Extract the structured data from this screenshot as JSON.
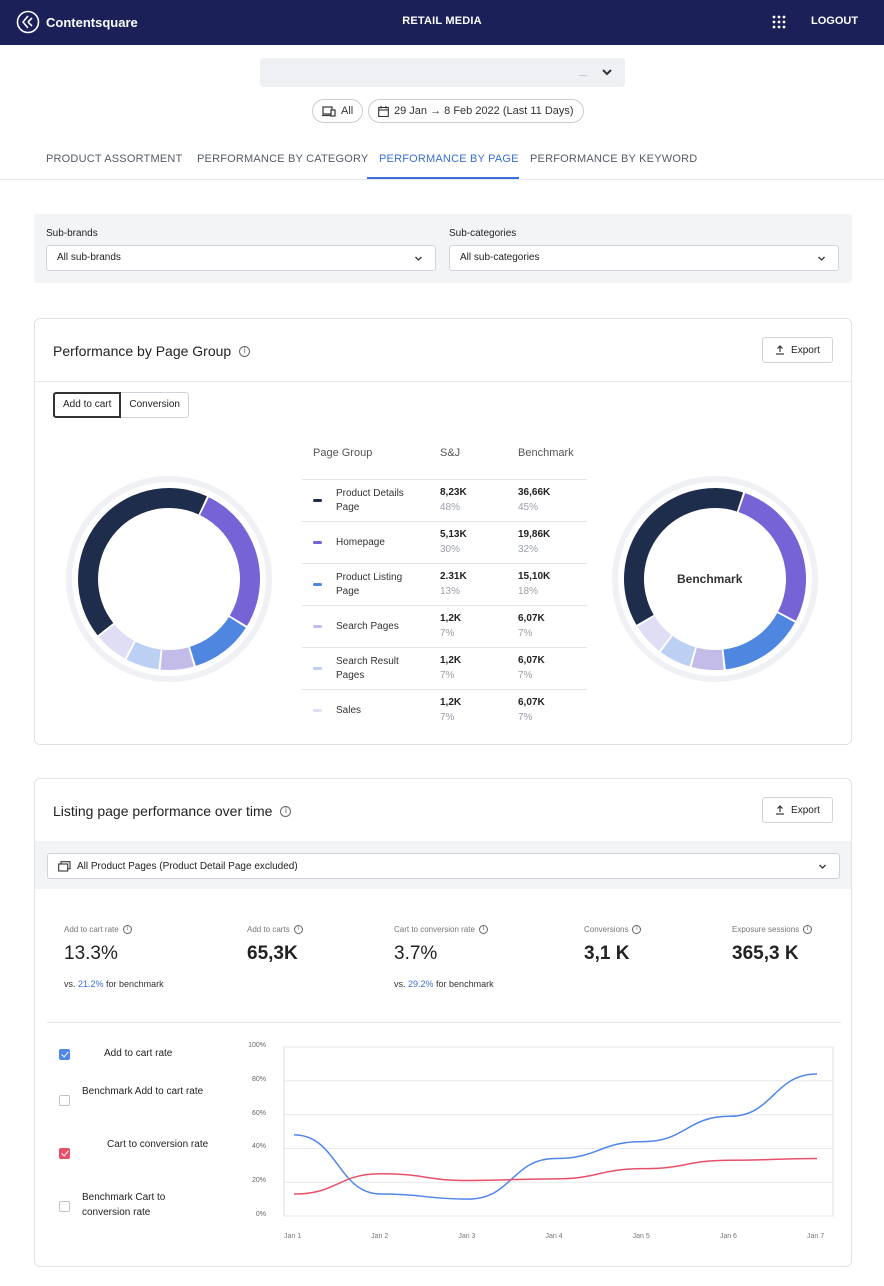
{
  "header": {
    "brand": "Contentsquare",
    "center_title": "RETAIL MEDIA",
    "logout": "LOGOUT"
  },
  "filters_top": {
    "device": "All",
    "date_range": "29 Jan → 8 Feb 2022 (Last 11 Days)"
  },
  "tabs": [
    {
      "label": "PRODUCT ASSORTMENT"
    },
    {
      "label": "PERFORMANCE BY CATEGORY"
    },
    {
      "label": "PERFORMANCE BY PAGE"
    },
    {
      "label": "PERFORMANCE BY KEYWORD"
    }
  ],
  "active_tab": "PERFORMANCE BY PAGE",
  "sub_filters": {
    "brands_label": "Sub-brands",
    "brands_value": "All sub-brands",
    "categories_label": "Sub-categories",
    "categories_value": "All sub-categories"
  },
  "page_group": {
    "title": "Performance by Page Group",
    "export": "Export",
    "toggle": [
      "Add to cart",
      "Conversion"
    ],
    "active_toggle": "Add to cart",
    "columns": [
      "Page Group",
      "S&J",
      "Benchmark"
    ],
    "benchmark_label": "Benchmark",
    "rows": [
      {
        "name": "Product Details Page",
        "color": "#1f2d4d",
        "sj": "8,23K",
        "sj_pct": "48%",
        "bm": "36,66K",
        "bm_pct": "45%"
      },
      {
        "name": "Homepage",
        "color": "#7663d6",
        "sj": "5,13K",
        "sj_pct": "30%",
        "bm": "19,86K",
        "bm_pct": "32%"
      },
      {
        "name": "Product Listing Page",
        "color": "#4f86e0",
        "sj": "2.31K",
        "sj_pct": "13%",
        "bm": "15,10K",
        "bm_pct": "18%"
      },
      {
        "name": "Search Pages",
        "color": "#c3bce9",
        "sj": "1,2K",
        "sj_pct": "7%",
        "bm": "6,07K",
        "bm_pct": "7%"
      },
      {
        "name": "Search Result Pages",
        "color": "#bcd0f4",
        "sj": "1,2K",
        "sj_pct": "7%",
        "bm": "6,07K",
        "bm_pct": "7%"
      },
      {
        "name": "Sales",
        "color": "#e0def5",
        "sj": "1,2K",
        "sj_pct": "7%",
        "bm": "6,07K",
        "bm_pct": "7%"
      }
    ]
  },
  "listing": {
    "title": "Listing page performance over time",
    "export": "Export",
    "dropdown": "All Product Pages (Product Detail Page excluded)",
    "kpis": [
      {
        "label": "Add to cart rate",
        "value": "13.3%",
        "sub_pre": "vs. ",
        "sub_hl": "21.2%",
        "sub_post": " for benchmark"
      },
      {
        "label": "Add to carts",
        "value": "65,3K"
      },
      {
        "label": "Cart to conversion rate",
        "value": "3.7%",
        "sub_pre": "vs. ",
        "sub_hl": "29.2%",
        "sub_post": " for benchmark"
      },
      {
        "label": "Conversions",
        "value": "3,1 K"
      },
      {
        "label": "Exposure sessions",
        "value": "365,3 K"
      }
    ],
    "series_toggles": [
      {
        "label": "Add to cart rate",
        "checked": true,
        "color": "#4f86e8"
      },
      {
        "label": "Benchmark Add to cart rate",
        "checked": false
      },
      {
        "label": "Cart to conversion rate",
        "checked": true,
        "color": "#e8506a"
      },
      {
        "label": "Benchmark Cart to conversion rate",
        "checked": false
      }
    ]
  },
  "chart_data": {
    "type": "line",
    "x": [
      "Jan 1",
      "Jan 2",
      "Jan 3",
      "Jan 4",
      "Jan 5",
      "Jan 6",
      "Jan 7"
    ],
    "y_ticks": [
      "100%",
      "80%",
      "60%",
      "40%",
      "20%",
      "0%"
    ],
    "ylim": [
      0,
      100
    ],
    "grid": true,
    "series": [
      {
        "name": "Add to cart rate",
        "color": "#4f86e8",
        "values": [
          48,
          13,
          10,
          34,
          44,
          59,
          84
        ]
      },
      {
        "name": "Cart to conversion rate",
        "color": "#e8506a",
        "values": [
          13,
          25,
          21,
          22,
          28,
          33,
          34
        ]
      }
    ]
  }
}
